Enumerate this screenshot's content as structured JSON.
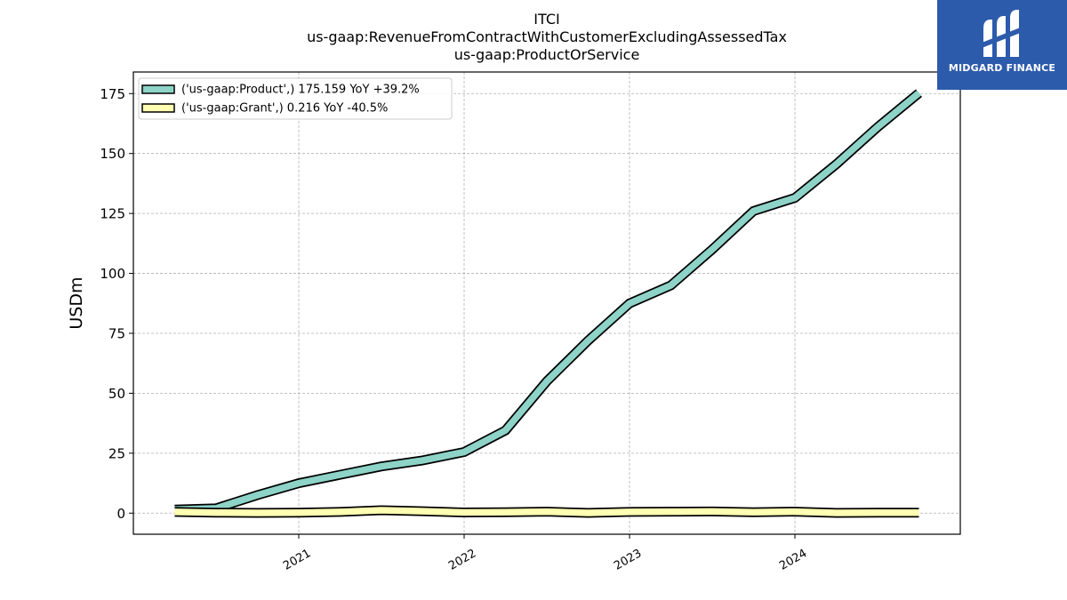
{
  "chart_data": {
    "type": "line",
    "title": [
      "ITCI",
      "us-gaap:RevenueFromContractWithCustomerExcludingAssessedTax",
      "us-gaap:ProductOrService"
    ],
    "ylabel": "USDm",
    "xlabel": "",
    "ylim": [
      -8.8,
      184.0
    ],
    "xlim": [
      2020.0,
      2025.0
    ],
    "yticks": [
      0,
      25,
      50,
      75,
      100,
      125,
      150,
      175
    ],
    "xticks": [
      {
        "x": 2021.0,
        "label": "2021"
      },
      {
        "x": 2022.0,
        "label": "2022"
      },
      {
        "x": 2023.0,
        "label": "2023"
      },
      {
        "x": 2024.0,
        "label": "2024"
      }
    ],
    "grid": true,
    "legend_position": "top-left",
    "series": [
      {
        "name": "('us-gaap:Product',) 175.159 YoY +39.2%",
        "color": "#8dd3c7",
        "x": [
          2020.25,
          2020.5,
          2020.75,
          2021.0,
          2021.25,
          2021.5,
          2021.75,
          2022.0,
          2022.25,
          2022.5,
          2022.75,
          2023.0,
          2023.25,
          2023.5,
          2023.75,
          2024.0,
          2024.25,
          2024.5,
          2024.75
        ],
        "values": [
          1.5,
          2.0,
          7.5,
          12.5,
          16.0,
          19.5,
          22.0,
          25.5,
          34.5,
          55.0,
          72.0,
          87.5,
          95.0,
          110.0,
          126.0,
          131.5,
          145.5,
          161.0,
          175.2
        ]
      },
      {
        "name": "('us-gaap:Grant',) 0.216 YoY -40.5%",
        "color": "#ffffb3",
        "x": [
          2020.25,
          2020.5,
          2020.75,
          2021.0,
          2021.25,
          2021.5,
          2021.75,
          2022.0,
          2022.25,
          2022.5,
          2022.75,
          2023.0,
          2023.25,
          2023.5,
          2023.75,
          2024.0,
          2024.25,
          2024.5,
          2024.75
        ],
        "values": [
          0.5,
          0.2,
          0.1,
          0.2,
          0.5,
          1.2,
          0.8,
          0.3,
          0.4,
          0.6,
          0.1,
          0.5,
          0.6,
          0.7,
          0.4,
          0.6,
          0.1,
          0.2,
          0.216
        ]
      }
    ]
  },
  "brand": {
    "name": "MIDGARD FINANCE",
    "icon": "midgard-logo-icon",
    "color": "#2d5bab"
  }
}
